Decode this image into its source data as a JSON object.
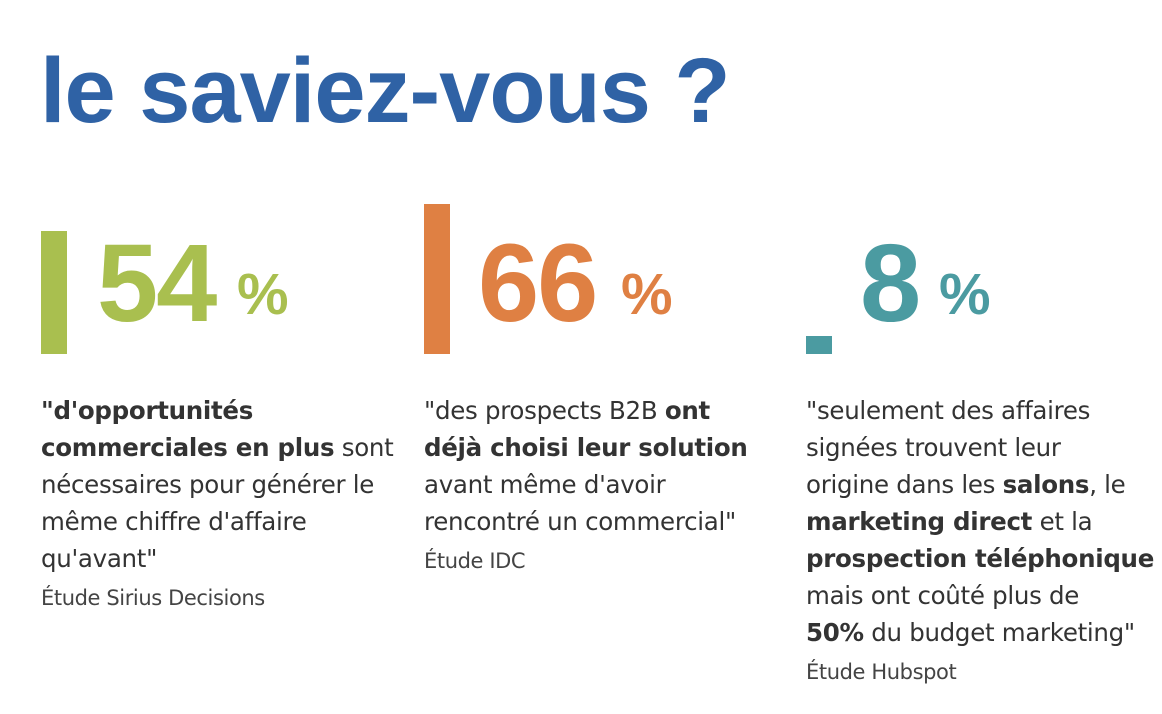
{
  "title": "le saviez-vous ?",
  "colors": {
    "title": "#2f62a5",
    "text": "#333333",
    "stat_green": "#a9bf4f",
    "stat_orange": "#df8043",
    "stat_teal": "#4b9ba1"
  },
  "chart_data": {
    "type": "bar",
    "categories": [
      "54 %",
      "66 %",
      "8 %"
    ],
    "values": [
      54,
      66,
      8
    ],
    "unit": "%",
    "ylim": [
      0,
      100
    ],
    "title": "le saviez-vous ?",
    "xlabel": "",
    "ylabel": ""
  },
  "stats": [
    {
      "value": "54",
      "unit": "%",
      "color": "#a9bf4f",
      "lines": [
        [
          {
            "t": "\"d'opportunités",
            "b": true
          }
        ],
        [
          {
            "t": "commerciales en plus",
            "b": true
          },
          {
            "t": " sont",
            "b": false
          }
        ],
        [
          {
            "t": "nécessaires pour générer le",
            "b": false
          }
        ],
        [
          {
            "t": "même chiffre d'affaire",
            "b": false
          }
        ],
        [
          {
            "t": "qu'avant\"",
            "b": false
          }
        ]
      ],
      "source": "Étude Sirius Decisions"
    },
    {
      "value": "66",
      "unit": "%",
      "color": "#df8043",
      "lines": [
        [
          {
            "t": "\"des prospects B2B ",
            "b": false
          },
          {
            "t": "ont",
            "b": true
          }
        ],
        [
          {
            "t": "déjà choisi leur solution",
            "b": true
          }
        ],
        [
          {
            "t": "avant même d'avoir",
            "b": false
          }
        ],
        [
          {
            "t": "rencontré un commercial\"",
            "b": false
          }
        ]
      ],
      "source": "Étude IDC"
    },
    {
      "value": "8",
      "unit": "%",
      "color": "#4b9ba1",
      "lines": [
        [
          {
            "t": "\"seulement des affaires",
            "b": false
          }
        ],
        [
          {
            "t": "signées trouvent leur",
            "b": false
          }
        ],
        [
          {
            "t": "origine dans les ",
            "b": false
          },
          {
            "t": "salons",
            "b": true
          },
          {
            "t": ", le",
            "b": false
          }
        ],
        [
          {
            "t": "marketing direct",
            "b": true
          },
          {
            "t": " et la",
            "b": false
          }
        ],
        [
          {
            "t": "prospection téléphonique",
            "b": true
          }
        ],
        [
          {
            "t": "mais ont coûté plus de",
            "b": false
          }
        ],
        [
          {
            "t": "50%",
            "b": true
          },
          {
            "t": " du budget marketing\"",
            "b": false
          }
        ]
      ],
      "source": "Étude Hubspot"
    }
  ]
}
